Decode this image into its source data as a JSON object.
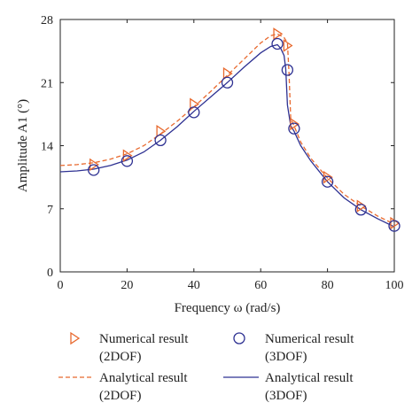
{
  "chart_data": {
    "type": "line",
    "xlabel": "Frequency ω (rad/s)",
    "ylabel": "Amplitude A1 (°)",
    "xlim": [
      0,
      100
    ],
    "ylim": [
      0,
      28
    ],
    "xticks": [
      0,
      20,
      40,
      60,
      80,
      100
    ],
    "yticks": [
      0,
      7,
      14,
      21,
      28
    ],
    "grid": false,
    "legend_position": "bottom",
    "series": [
      {
        "name": "Numerical result (2DOF)",
        "legend_line1": "Numerical result",
        "legend_line2": "(2DOF)",
        "kind": "marker",
        "marker": "triangle-right",
        "color": "#e8692e",
        "x": [
          10,
          20,
          30,
          40,
          50,
          65,
          68,
          70,
          80,
          90,
          100
        ],
        "y": [
          11.9,
          12.9,
          15.6,
          18.6,
          22.0,
          26.4,
          25.1,
          16.4,
          10.5,
          7.3,
          5.4
        ]
      },
      {
        "name": "Numerical result (3DOF)",
        "legend_line1": "Numerical result",
        "legend_line2": "(3DOF)",
        "kind": "marker",
        "marker": "circle",
        "color": "#2e3192",
        "x": [
          10,
          20,
          30,
          40,
          50,
          65,
          68,
          70,
          80,
          90,
          100
        ],
        "y": [
          11.3,
          12.3,
          14.6,
          17.7,
          21.0,
          25.3,
          22.4,
          15.9,
          10.0,
          6.9,
          5.1
        ]
      },
      {
        "name": "Analytical result (2DOF)",
        "legend_line1": "Analytical result",
        "legend_line2": "(2DOF)",
        "kind": "line",
        "dash": "dashed",
        "color": "#e8692e",
        "x": [
          0,
          5,
          10,
          15,
          20,
          25,
          30,
          35,
          40,
          45,
          50,
          55,
          60,
          63,
          65,
          67,
          68,
          68.5,
          69,
          70,
          72,
          75,
          80,
          85,
          90,
          95,
          100
        ],
        "y": [
          11.8,
          11.9,
          12.1,
          12.5,
          13.1,
          14.0,
          15.3,
          16.7,
          18.3,
          20.0,
          21.8,
          23.6,
          25.4,
          26.2,
          26.4,
          26.0,
          25.4,
          22.0,
          17.0,
          16.2,
          14.4,
          12.6,
          10.4,
          8.6,
          7.3,
          6.2,
          5.3
        ]
      },
      {
        "name": "Analytical result (3DOF)",
        "legend_line1": "Analytical result",
        "legend_line2": "(3DOF)",
        "kind": "line",
        "dash": "solid",
        "color": "#2e3192",
        "x": [
          0,
          5,
          10,
          15,
          20,
          25,
          30,
          35,
          40,
          45,
          50,
          55,
          60,
          63,
          65,
          66,
          67,
          67.5,
          68,
          69,
          70,
          72,
          75,
          80,
          85,
          90,
          95,
          100
        ],
        "y": [
          11.1,
          11.2,
          11.4,
          11.8,
          12.4,
          13.3,
          14.6,
          16.1,
          17.8,
          19.4,
          21.0,
          22.7,
          24.3,
          25.0,
          25.2,
          24.8,
          24.0,
          22.5,
          18.5,
          16.2,
          15.6,
          14.0,
          12.3,
          10.0,
          8.2,
          6.9,
          5.9,
          5.0
        ]
      }
    ]
  }
}
